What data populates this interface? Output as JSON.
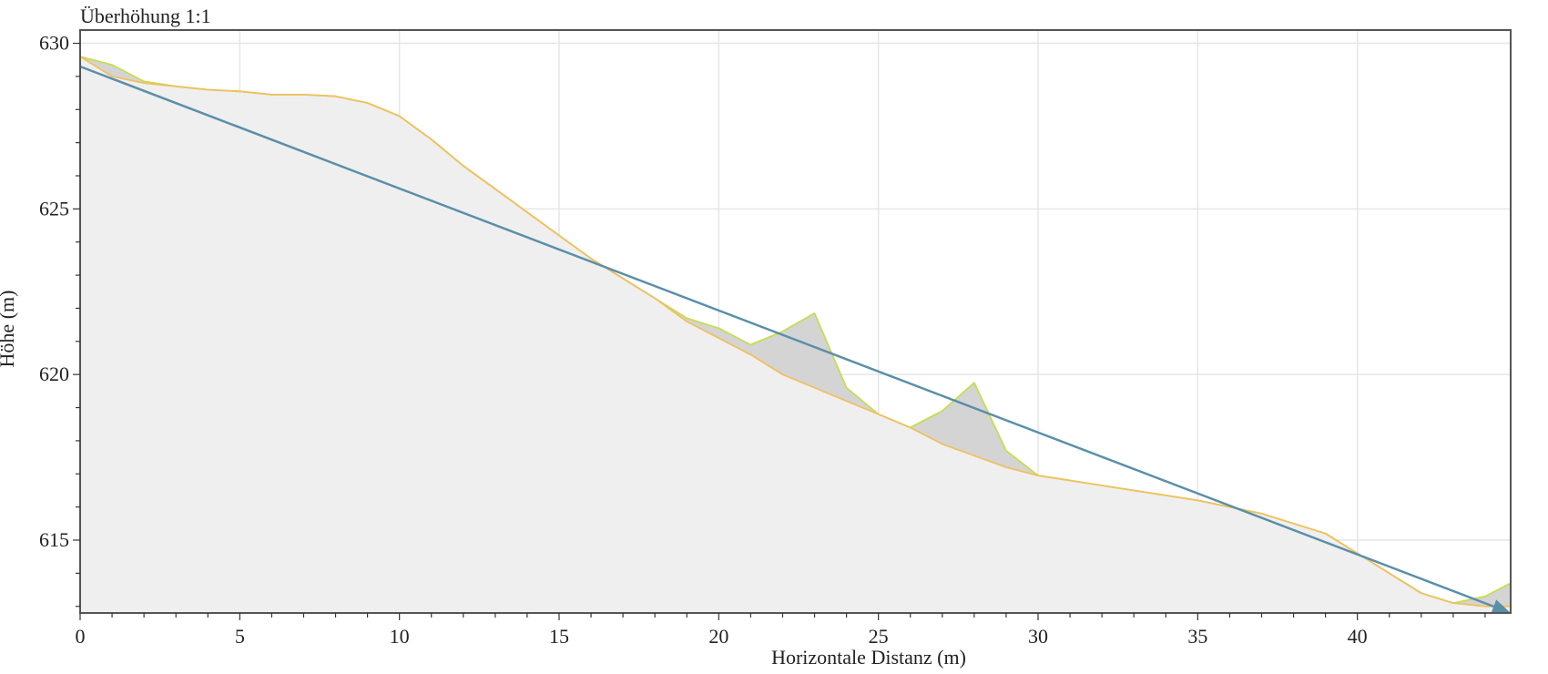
{
  "chart_data": {
    "type": "area",
    "corner_label": "Überhöhung 1:1",
    "xlabel": "Horizontale Distanz (m)",
    "ylabel": "Höhe (m)",
    "xlim": [
      0,
      44.8
    ],
    "ylim": [
      612.8,
      630.4
    ],
    "x_ticks": [
      0,
      5,
      10,
      15,
      20,
      25,
      30,
      35,
      40
    ],
    "y_ticks": [
      615,
      620,
      625,
      630
    ],
    "grid": true,
    "colors": {
      "terrain_fill": "#efefef",
      "surface_fill": "#d4d4d4",
      "terrain_line": "#f0c060",
      "surface_line": "#c8dc50",
      "trajectory": "#5a8fa8",
      "grid": "#e6e6e6",
      "frame": "#555555"
    },
    "series": [
      {
        "key": "terrain",
        "x": [
          0,
          1,
          2,
          3,
          4,
          5,
          6,
          7,
          8,
          9,
          10,
          11,
          12,
          13,
          14,
          15,
          16,
          17,
          18,
          19,
          20,
          21,
          22,
          23,
          24,
          25,
          26,
          27,
          28,
          29,
          30,
          31,
          32,
          33,
          34,
          35,
          36,
          37,
          38,
          39,
          40,
          41,
          42,
          43,
          44,
          44.8
        ],
        "y": [
          629.6,
          629.0,
          628.8,
          628.7,
          628.6,
          628.55,
          628.45,
          628.45,
          628.4,
          628.2,
          627.8,
          627.1,
          626.3,
          625.6,
          624.9,
          624.2,
          623.5,
          622.9,
          622.3,
          621.6,
          621.1,
          620.6,
          620.0,
          619.6,
          619.2,
          618.8,
          618.4,
          617.9,
          617.55,
          617.2,
          616.95,
          616.8,
          616.65,
          616.5,
          616.35,
          616.2,
          616.0,
          615.8,
          615.5,
          615.2,
          614.6,
          614.0,
          613.4,
          613.1,
          613.0,
          613.0
        ]
      },
      {
        "key": "surface",
        "x": [
          0,
          1,
          2,
          3,
          4,
          5,
          6,
          7,
          8,
          9,
          10,
          11,
          12,
          13,
          14,
          15,
          16,
          17,
          18,
          19,
          20,
          21,
          22,
          23,
          24,
          25,
          26,
          27,
          28,
          29,
          30,
          31,
          32,
          33,
          34,
          35,
          36,
          37,
          38,
          39,
          40,
          41,
          42,
          43,
          44,
          44.8
        ],
        "y": [
          629.6,
          629.35,
          628.85,
          628.7,
          628.6,
          628.55,
          628.45,
          628.45,
          628.4,
          628.2,
          627.8,
          627.1,
          626.3,
          625.6,
          624.9,
          624.2,
          623.5,
          622.9,
          622.3,
          621.7,
          621.4,
          620.9,
          621.3,
          621.85,
          619.6,
          618.8,
          618.4,
          618.9,
          619.75,
          617.7,
          616.95,
          616.8,
          616.65,
          616.5,
          616.35,
          616.2,
          616.0,
          615.8,
          615.5,
          615.2,
          614.6,
          614.0,
          613.4,
          613.1,
          613.3,
          613.7
        ]
      },
      {
        "key": "trajectory",
        "x": [
          0,
          44.8
        ],
        "y": [
          629.3,
          612.8
        ]
      }
    ]
  }
}
